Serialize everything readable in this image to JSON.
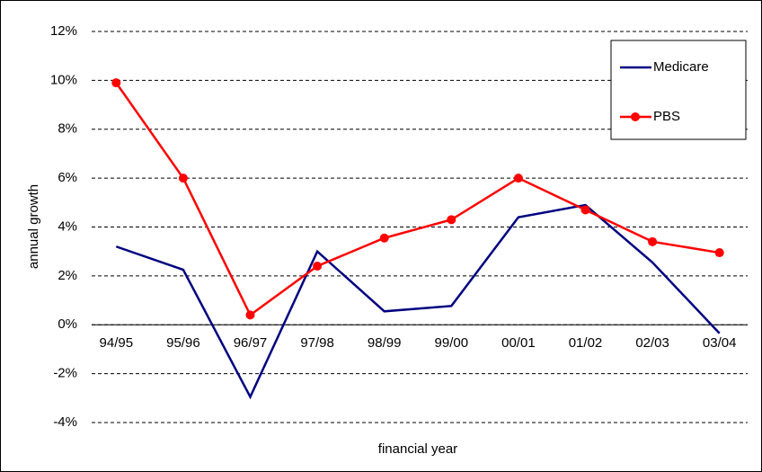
{
  "chart_data": {
    "type": "line",
    "xlabel": "financial year",
    "ylabel": "annual growth",
    "categories": [
      "94/95",
      "95/96",
      "96/97",
      "97/98",
      "98/99",
      "99/00",
      "00/01",
      "01/02",
      "02/03",
      "03/04"
    ],
    "series": [
      {
        "name": "Medicare",
        "color": "#000080",
        "marker": false,
        "values": [
          3.2,
          2.25,
          -2.95,
          3.0,
          0.55,
          0.77,
          4.4,
          4.9,
          2.55,
          -0.35
        ]
      },
      {
        "name": "PBS",
        "color": "#ff0000",
        "marker": true,
        "values": [
          9.9,
          6.0,
          0.4,
          2.4,
          3.55,
          4.3,
          6.0,
          4.7,
          3.4,
          2.95
        ]
      }
    ],
    "ylim": [
      -4,
      12
    ],
    "yticks": [
      {
        "value": -4,
        "label": "-4%"
      },
      {
        "value": -2,
        "label": "-2%"
      },
      {
        "value": 0,
        "label": "0%"
      },
      {
        "value": 2,
        "label": "2%"
      },
      {
        "value": 4,
        "label": "4%"
      },
      {
        "value": 6,
        "label": "6%"
      },
      {
        "value": 8,
        "label": "8%"
      },
      {
        "value": 10,
        "label": "10%"
      },
      {
        "value": 12,
        "label": "12%"
      }
    ],
    "grid": true,
    "legend": "upper right"
  }
}
